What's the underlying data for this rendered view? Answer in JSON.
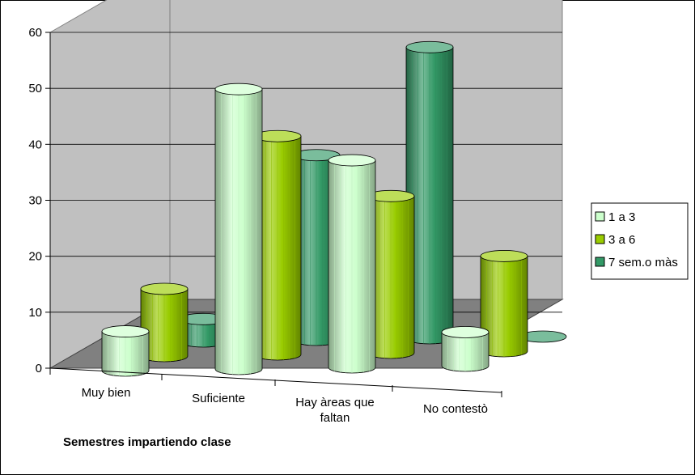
{
  "chart_data": {
    "type": "bar",
    "style": "3d-cylinder",
    "categories": [
      "Muy bien",
      "Suficiente",
      "Hay àreas que faltan",
      "No contestò"
    ],
    "category_lines": [
      [
        "Muy bien"
      ],
      [
        "Suficiente"
      ],
      [
        "Hay àreas que",
        "faltan"
      ],
      [
        "No contestò"
      ]
    ],
    "series": [
      {
        "name": "1 a 3",
        "values": [
          7,
          50,
          37,
          6
        ],
        "color": "#ccffcc"
      },
      {
        "name": "3 a 6",
        "values": [
          12,
          39,
          28,
          17
        ],
        "color": "#99cc00"
      },
      {
        "name": "7 sem.o màs",
        "values": [
          4,
          33,
          52,
          0
        ],
        "color": "#339966"
      }
    ],
    "xlabel": "Semestres impartiendo clase",
    "ylabel": "",
    "ylim": [
      0,
      60
    ],
    "yticks": [
      0,
      10,
      20,
      30,
      40,
      50,
      60
    ],
    "grid": true,
    "legend_position": "right",
    "wall_color": "#c0c0c0",
    "floor_color": "#808080"
  }
}
